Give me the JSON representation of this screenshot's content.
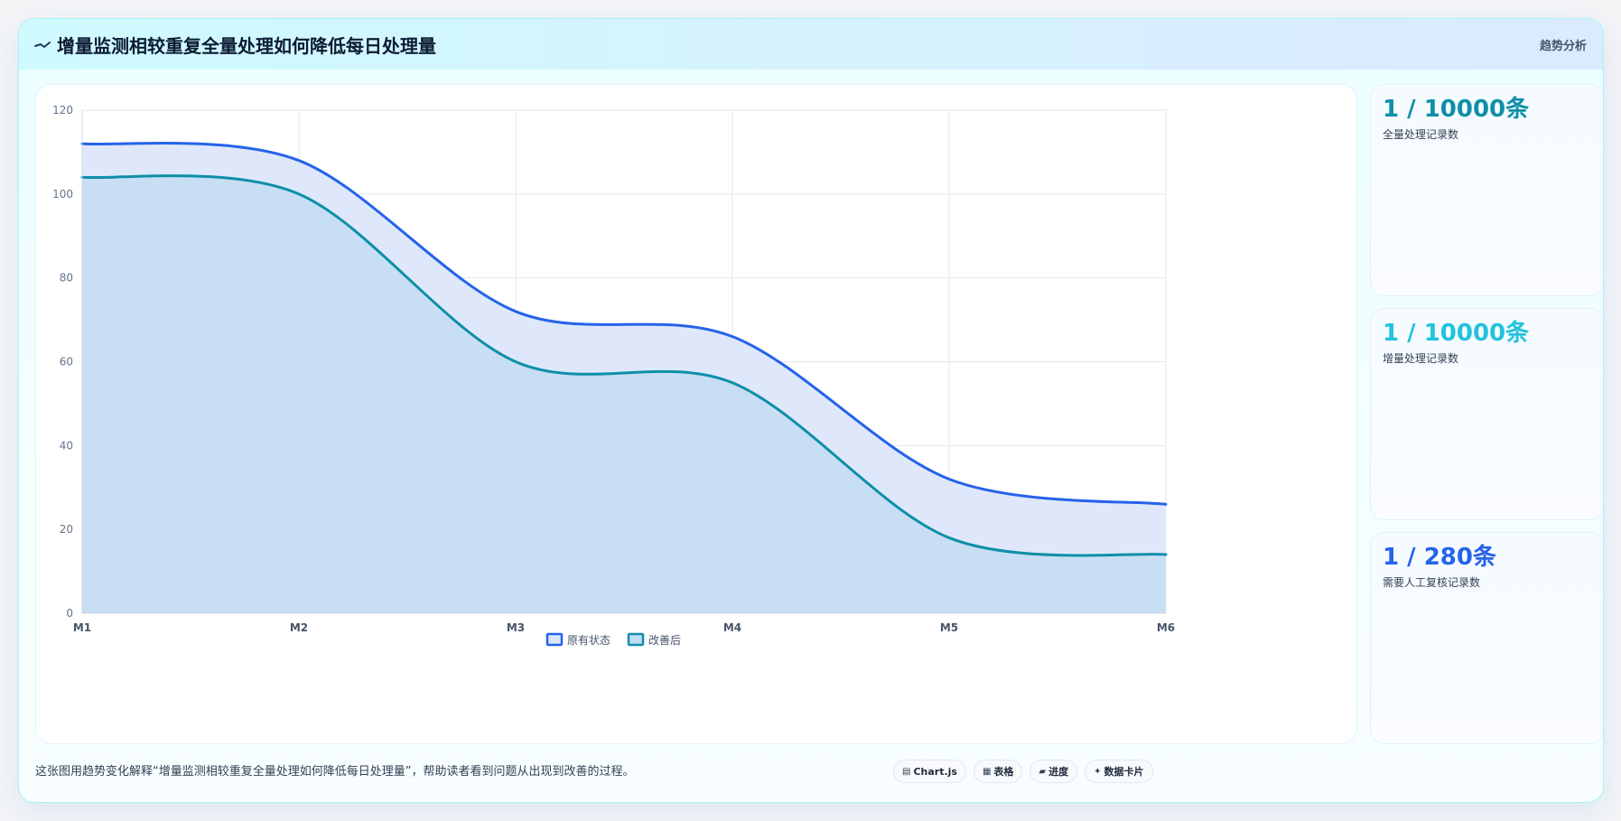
{
  "header": {
    "title": "增量监测相较重复全量处理如何降低每日处理量",
    "tag": "趋势分析",
    "icon": "trend-line-icon"
  },
  "chart_data": {
    "type": "area",
    "categories": [
      "M1",
      "M2",
      "M3",
      "M4",
      "M5",
      "M6"
    ],
    "ylim": [
      0,
      120
    ],
    "yticks": [
      0,
      20,
      40,
      60,
      80,
      100,
      120
    ],
    "grid": true,
    "legend_placement": "bottom-center",
    "series": [
      {
        "name": "原有状态",
        "values": [
          112,
          108,
          72,
          66,
          32,
          26
        ],
        "color": "#2563eb",
        "fill": "#dbe6fb"
      },
      {
        "name": "改善后",
        "values": [
          104,
          100,
          60,
          55,
          18,
          14
        ],
        "color": "#0e8fa8",
        "fill": "#c4dcf2"
      }
    ],
    "title": "",
    "xlabel": "",
    "ylabel": ""
  },
  "stats": [
    {
      "value": "1 / 10000条",
      "label": "全量处理记录数",
      "color": "#0e8fa8"
    },
    {
      "value": "1 / 10000条",
      "label": "增量处理记录数",
      "color": "#22c3dc"
    },
    {
      "value": "1 / 280条",
      "label": "需要人工复核记录数",
      "color": "#2563eb"
    }
  ],
  "footer": {
    "text": "这张图用趋势变化解释“增量监测相较重复全量处理如何降低每日处理量”，帮助读者看到问题从出现到改善的过程。",
    "chips": [
      {
        "icon": "▤",
        "label": "Chart.js",
        "name": "chip-chartjs"
      },
      {
        "icon": "▦",
        "label": "表格",
        "name": "chip-table"
      },
      {
        "icon": "▰",
        "label": "进度",
        "name": "chip-progress"
      },
      {
        "icon": "✦",
        "label": "数据卡片",
        "name": "chip-data-card"
      }
    ]
  }
}
